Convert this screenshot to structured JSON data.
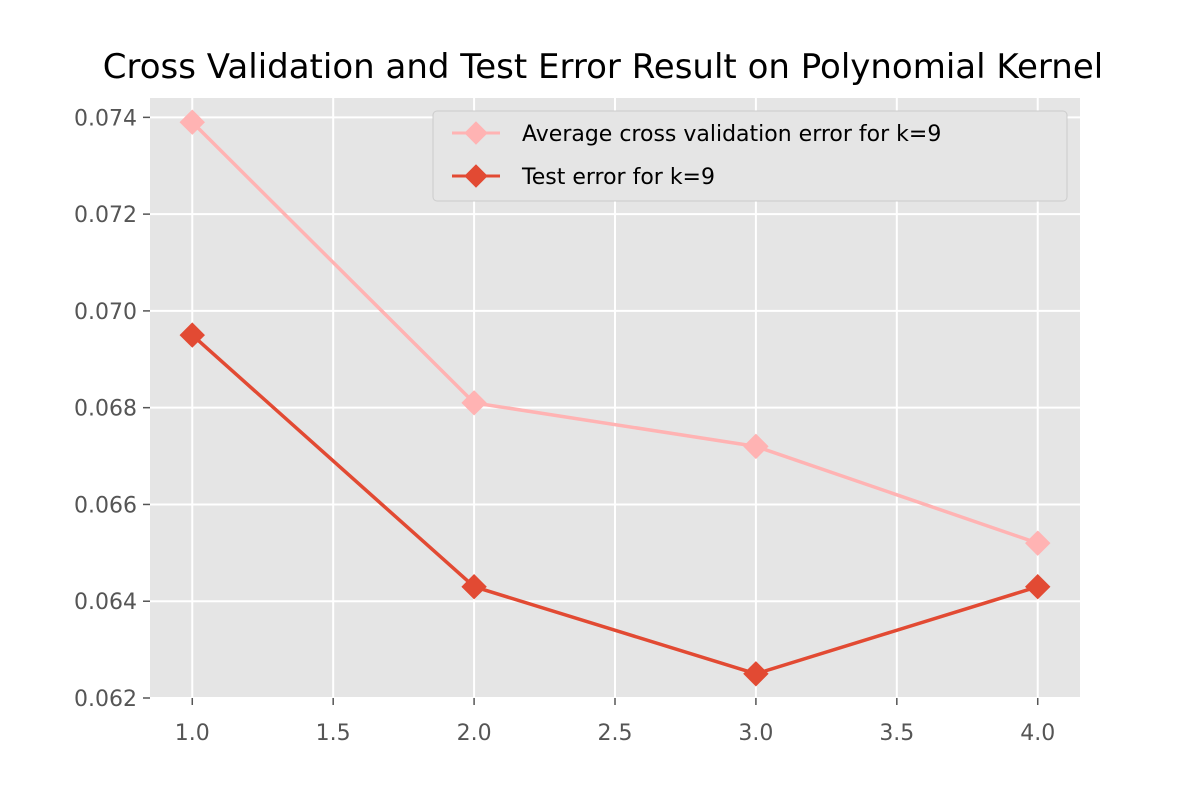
{
  "chart_data": {
    "type": "line",
    "title": "Cross Validation and Test Error Result on Polynomial Kernel",
    "xlabel": "",
    "ylabel": "",
    "x": [
      1.0,
      2.0,
      3.0,
      4.0
    ],
    "xlim": [
      0.85,
      4.15
    ],
    "ylim": [
      0.062,
      0.0744
    ],
    "x_ticks": [
      "1.0",
      "1.5",
      "2.0",
      "2.5",
      "3.0",
      "3.5",
      "4.0"
    ],
    "y_ticks": [
      "0.062",
      "0.064",
      "0.066",
      "0.068",
      "0.070",
      "0.072",
      "0.074"
    ],
    "grid": true,
    "legend_position": "top-right",
    "background": "#e5e5e5",
    "series": [
      {
        "name": "Average cross validation error for k=9",
        "color": "#ffb3b3",
        "marker": "diamond",
        "values": [
          0.0739,
          0.0681,
          0.0672,
          0.0652
        ]
      },
      {
        "name": "Test error for k=9",
        "color": "#e24a33",
        "marker": "diamond",
        "values": [
          0.0695,
          0.0643,
          0.0625,
          0.0643
        ]
      }
    ]
  }
}
